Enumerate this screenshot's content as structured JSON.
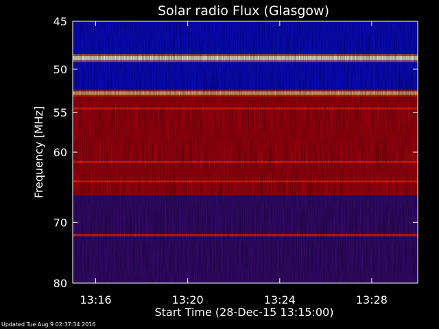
{
  "footer": {
    "updated": "Updated Tue Aug  9 02:37:34 2016"
  },
  "chart_data": {
    "type": "heatmap",
    "title": "Solar radio Flux (Glasgow)",
    "xlabel": "Start Time (28-Dec-15 13:15:00)",
    "ylabel": "Frequency [MHz]",
    "xlim": [
      "13:15:00",
      "13:30:00"
    ],
    "ylim": [
      45,
      80
    ],
    "y_scale": "log",
    "y_inverted": true,
    "x_ticks": [
      "13:16",
      "13:20",
      "13:24",
      "13:28"
    ],
    "y_ticks": [
      45,
      50,
      55,
      60,
      70,
      80
    ],
    "colormap": [
      "#000060",
      "#0000ff",
      "#a00000",
      "#ff2000",
      "#ffb060",
      "#ffffff"
    ],
    "bright_bands_mhz": [
      {
        "freq": 48.8,
        "level": "very high"
      },
      {
        "freq": 52.7,
        "level": "high"
      },
      {
        "freq": 54.5,
        "level": "elevated"
      },
      {
        "freq": 61.3,
        "level": "elevated"
      },
      {
        "freq": 64.0,
        "level": "elevated"
      },
      {
        "freq": 72.0,
        "level": "elevated"
      }
    ],
    "regions_mhz": [
      {
        "range": [
          45,
          52.5
        ],
        "level": "low (blue)"
      },
      {
        "range": [
          52.5,
          66
        ],
        "level": "medium-high (red)"
      },
      {
        "range": [
          66,
          80
        ],
        "level": "medium-low (purple)"
      }
    ]
  }
}
